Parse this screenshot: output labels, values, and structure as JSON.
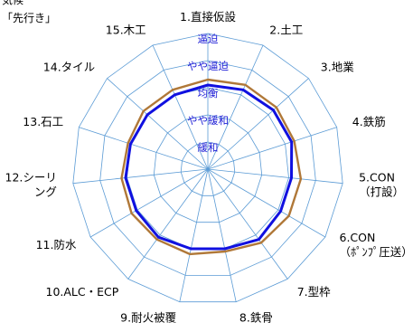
{
  "header": {
    "top_text": "気候",
    "subtitle": "「先行き」"
  },
  "chart_data": {
    "type": "radar",
    "title": "",
    "categories": [
      "1.直接仮設",
      "2.土工",
      "3.地業",
      "4.鉄筋",
      "5.CON（打設）",
      "6.CON（ﾎﾟﾝﾌﾟ圧送）",
      "7.型枠",
      "8.鉄骨",
      "9.耐火被覆",
      "10.ALC・ECP",
      "11.防水",
      "12.シーリング",
      "13.石工",
      "14.タイル",
      "15.木工"
    ],
    "category_display_lines": [
      [
        "1.直接仮設"
      ],
      [
        "2.土工"
      ],
      [
        "3.地業"
      ],
      [
        "4.鉄筋"
      ],
      [
        "5.CON",
        "（打設）"
      ],
      [
        "6.CON",
        "（ﾎﾟﾝﾌﾟ圧送）"
      ],
      [
        "7.型枠"
      ],
      [
        "8.鉄骨"
      ],
      [
        "9.耐火被覆"
      ],
      [
        "10.ALC・ECP"
      ],
      [
        "11.防水"
      ],
      [
        "12.シーリ",
        "ング"
      ],
      [
        "13.石工"
      ],
      [
        "14.タイル"
      ],
      [
        "15.木工"
      ]
    ],
    "levels": [
      "緩和",
      "やや緩和",
      "均衡",
      "やや逼迫",
      "逼迫"
    ],
    "rlim": [
      0,
      5
    ],
    "series": [
      {
        "values": [
          3.3,
          3.4,
          3.4,
          3.35,
          3.45,
          3.45,
          3.35,
          3.1,
          3.2,
          3.2,
          3.25,
          3.2,
          3.1,
          3.2,
          3.2
        ],
        "color": "#b07838"
      },
      {
        "values": [
          3.1,
          3.2,
          3.25,
          3.25,
          3.1,
          3.1,
          3.2,
          3.0,
          3.0,
          3.1,
          3.05,
          3.05,
          3.0,
          3.0,
          3.0
        ],
        "color": "#1010e0"
      }
    ],
    "grid_color": "#5b9bd5",
    "level_label_color": "#1f1fd6",
    "grid": true,
    "legend": "none"
  }
}
